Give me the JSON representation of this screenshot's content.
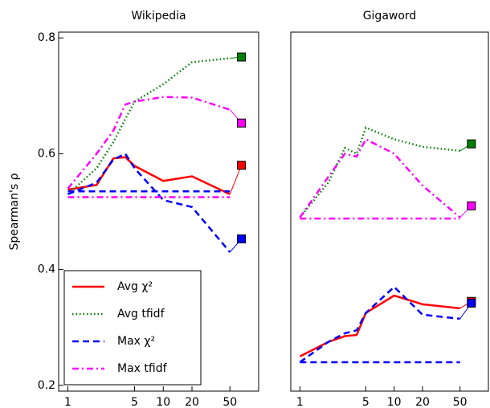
{
  "chart_data": [
    {
      "type": "line",
      "title": "Wikipedia",
      "y_label": "Spearman's ρ",
      "x_scale": "log",
      "x": [
        1,
        2,
        3,
        4,
        5,
        10,
        20,
        50
      ],
      "xlim": [
        0.8,
        100
      ],
      "xticks": [
        1,
        5,
        10,
        20,
        50
      ],
      "ylim": [
        0.19,
        0.81
      ],
      "yticks": [
        0.2,
        0.4,
        0.6,
        0.8
      ],
      "marker_x": 66,
      "legend": "lower left",
      "series": [
        {
          "name": "Avg χ²",
          "color": "#ff0000",
          "style": "solid",
          "values": [
            0.538,
            0.546,
            0.592,
            0.594,
            0.579,
            0.553,
            0.561,
            0.53
          ],
          "final": 0.58
        },
        {
          "name": "Avg tfidf",
          "color": "#008000",
          "style": "dotted",
          "values": [
            0.53,
            0.575,
            0.62,
            0.66,
            0.69,
            0.72,
            0.758,
            0.765
          ],
          "final": 0.767
        },
        {
          "name": "Max χ²",
          "color": "#0000ff",
          "style": "dashed",
          "values": [
            0.53,
            0.55,
            0.59,
            0.6,
            0.575,
            0.52,
            0.508,
            0.43
          ],
          "final": 0.453
        },
        {
          "name": "Max tfidf",
          "color": "#ff00ff",
          "style": "dashdot",
          "values": [
            0.54,
            0.6,
            0.64,
            0.685,
            0.69,
            0.698,
            0.697,
            0.676
          ],
          "final": 0.653
        },
        {
          "color": "#0000ff",
          "style": "dashed",
          "values": [
            0.535,
            0.535,
            0.535,
            0.535,
            0.535,
            0.535,
            0.535,
            0.535
          ]
        },
        {
          "color": "#ff00ff",
          "style": "dashdot",
          "values": [
            0.525,
            0.525,
            0.525,
            0.525,
            0.525,
            0.525,
            0.525,
            0.525
          ]
        }
      ]
    },
    {
      "type": "line",
      "title": "Gigaword",
      "x_scale": "log",
      "x": [
        1,
        2,
        3,
        4,
        5,
        10,
        20,
        50
      ],
      "xlim": [
        0.8,
        100
      ],
      "xticks": [
        1,
        5,
        10,
        20,
        50
      ],
      "ylim": [
        0.19,
        0.81
      ],
      "marker_x": 66,
      "series": [
        {
          "color": "#ff0000",
          "style": "solid",
          "values": [
            0.25,
            0.275,
            0.285,
            0.287,
            0.325,
            0.355,
            0.34,
            0.333
          ],
          "final": 0.345
        },
        {
          "color": "#008000",
          "style": "dotted",
          "values": [
            0.49,
            0.55,
            0.61,
            0.6,
            0.645,
            0.625,
            0.612,
            0.605
          ],
          "final": 0.617
        },
        {
          "color": "#0000ff",
          "style": "dashed",
          "values": [
            0.24,
            0.275,
            0.29,
            0.295,
            0.325,
            0.37,
            0.322,
            0.315
          ],
          "final": 0.342
        },
        {
          "color": "#ff00ff",
          "style": "dashdot",
          "values": [
            0.49,
            0.56,
            0.6,
            0.595,
            0.625,
            0.6,
            0.545,
            0.49
          ],
          "final": 0.51
        },
        {
          "color": "#0000ff",
          "style": "dashed",
          "values": [
            0.24,
            0.24,
            0.24,
            0.24,
            0.24,
            0.24,
            0.24,
            0.24
          ]
        },
        {
          "color": "#ff00ff",
          "style": "dashdot",
          "values": [
            0.488,
            0.488,
            0.488,
            0.488,
            0.488,
            0.488,
            0.488,
            0.488
          ]
        }
      ]
    }
  ]
}
